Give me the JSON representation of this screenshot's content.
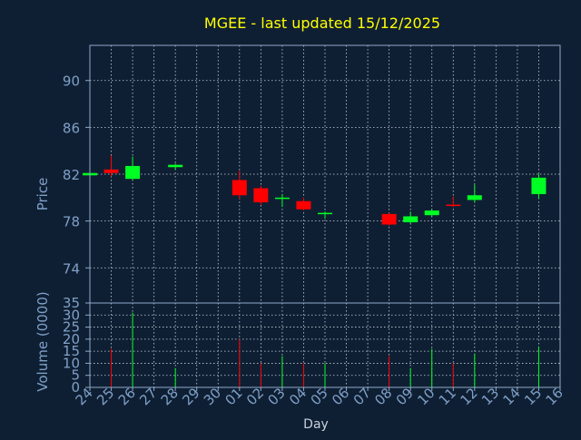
{
  "chart_data": [
    {
      "type": "candlestick",
      "title": "MGEE - last updated 15/12/2025",
      "ylabel": "Price",
      "ylim": [
        71,
        93
      ],
      "yticks": [
        74,
        78,
        82,
        86,
        90
      ],
      "x_tick_labels": [
        "24",
        "25",
        "26",
        "27",
        "28",
        "29",
        "30",
        "01",
        "02",
        "03",
        "04",
        "05",
        "06",
        "07",
        "08",
        "09",
        "10",
        "11",
        "12",
        "13",
        "14",
        "15",
        "16"
      ],
      "grid": true,
      "candles": [
        {
          "day": "24",
          "open": 81.9,
          "high": 82.1,
          "low": 81.8,
          "close": 82.1
        },
        {
          "day": "25",
          "open": 82.4,
          "high": 83.6,
          "low": 81.8,
          "close": 82.1
        },
        {
          "day": "26",
          "open": 81.6,
          "high": 83.5,
          "low": 81.5,
          "close": 82.7
        },
        {
          "day": "28",
          "open": 82.6,
          "high": 82.9,
          "low": 82.4,
          "close": 82.8
        },
        {
          "day": "01",
          "open": 81.5,
          "high": 82.3,
          "low": 79.9,
          "close": 80.2
        },
        {
          "day": "02",
          "open": 80.8,
          "high": 81.0,
          "low": 79.4,
          "close": 79.6
        },
        {
          "day": "03",
          "open": 79.9,
          "high": 80.3,
          "low": 79.2,
          "close": 80.0
        },
        {
          "day": "04",
          "open": 79.7,
          "high": 80.0,
          "low": 78.9,
          "close": 79.0
        },
        {
          "day": "05",
          "open": 78.6,
          "high": 78.8,
          "low": 78.2,
          "close": 78.7
        },
        {
          "day": "08",
          "open": 78.6,
          "high": 78.7,
          "low": 77.6,
          "close": 77.7
        },
        {
          "day": "09",
          "open": 77.9,
          "high": 78.8,
          "low": 77.8,
          "close": 78.4
        },
        {
          "day": "10",
          "open": 78.5,
          "high": 79.0,
          "low": 78.4,
          "close": 78.9
        },
        {
          "day": "11",
          "open": 79.4,
          "high": 80.1,
          "low": 79.2,
          "close": 79.3
        },
        {
          "day": "12",
          "open": 79.8,
          "high": 81.1,
          "low": 79.6,
          "close": 80.2
        },
        {
          "day": "15",
          "open": 80.3,
          "high": 82.0,
          "low": 79.9,
          "close": 81.7
        }
      ]
    },
    {
      "type": "bar",
      "ylabel": "Volume (0000)",
      "xlabel": "Day",
      "ylim": [
        0,
        35
      ],
      "yticks": [
        0,
        5,
        10,
        15,
        20,
        25,
        30,
        35
      ],
      "x_tick_labels": [
        "24",
        "25",
        "26",
        "27",
        "28",
        "29",
        "30",
        "01",
        "02",
        "03",
        "04",
        "05",
        "06",
        "07",
        "08",
        "09",
        "10",
        "11",
        "12",
        "13",
        "14",
        "15",
        "16"
      ],
      "grid": true,
      "bars": [
        {
          "day": "25",
          "value": 16,
          "direction": "down"
        },
        {
          "day": "26",
          "value": 31,
          "direction": "up"
        },
        {
          "day": "28",
          "value": 8,
          "direction": "up"
        },
        {
          "day": "01",
          "value": 20,
          "direction": "down"
        },
        {
          "day": "02",
          "value": 10,
          "direction": "down"
        },
        {
          "day": "03",
          "value": 13,
          "direction": "up"
        },
        {
          "day": "04",
          "value": 10,
          "direction": "down"
        },
        {
          "day": "05",
          "value": 10,
          "direction": "up"
        },
        {
          "day": "08",
          "value": 13,
          "direction": "down"
        },
        {
          "day": "09",
          "value": 8,
          "direction": "up"
        },
        {
          "day": "10",
          "value": 16,
          "direction": "up"
        },
        {
          "day": "11",
          "value": 10,
          "direction": "down"
        },
        {
          "day": "12",
          "value": 14,
          "direction": "up"
        },
        {
          "day": "15",
          "value": 17,
          "direction": "up"
        }
      ]
    }
  ],
  "colors": {
    "background": "#0f1f33",
    "frame": "#8fa8c8",
    "grid": "#c8d0dc",
    "title": "#ffff00",
    "axis_text": "#7fa0c8",
    "up": "#00ff22",
    "down": "#ff0000"
  }
}
